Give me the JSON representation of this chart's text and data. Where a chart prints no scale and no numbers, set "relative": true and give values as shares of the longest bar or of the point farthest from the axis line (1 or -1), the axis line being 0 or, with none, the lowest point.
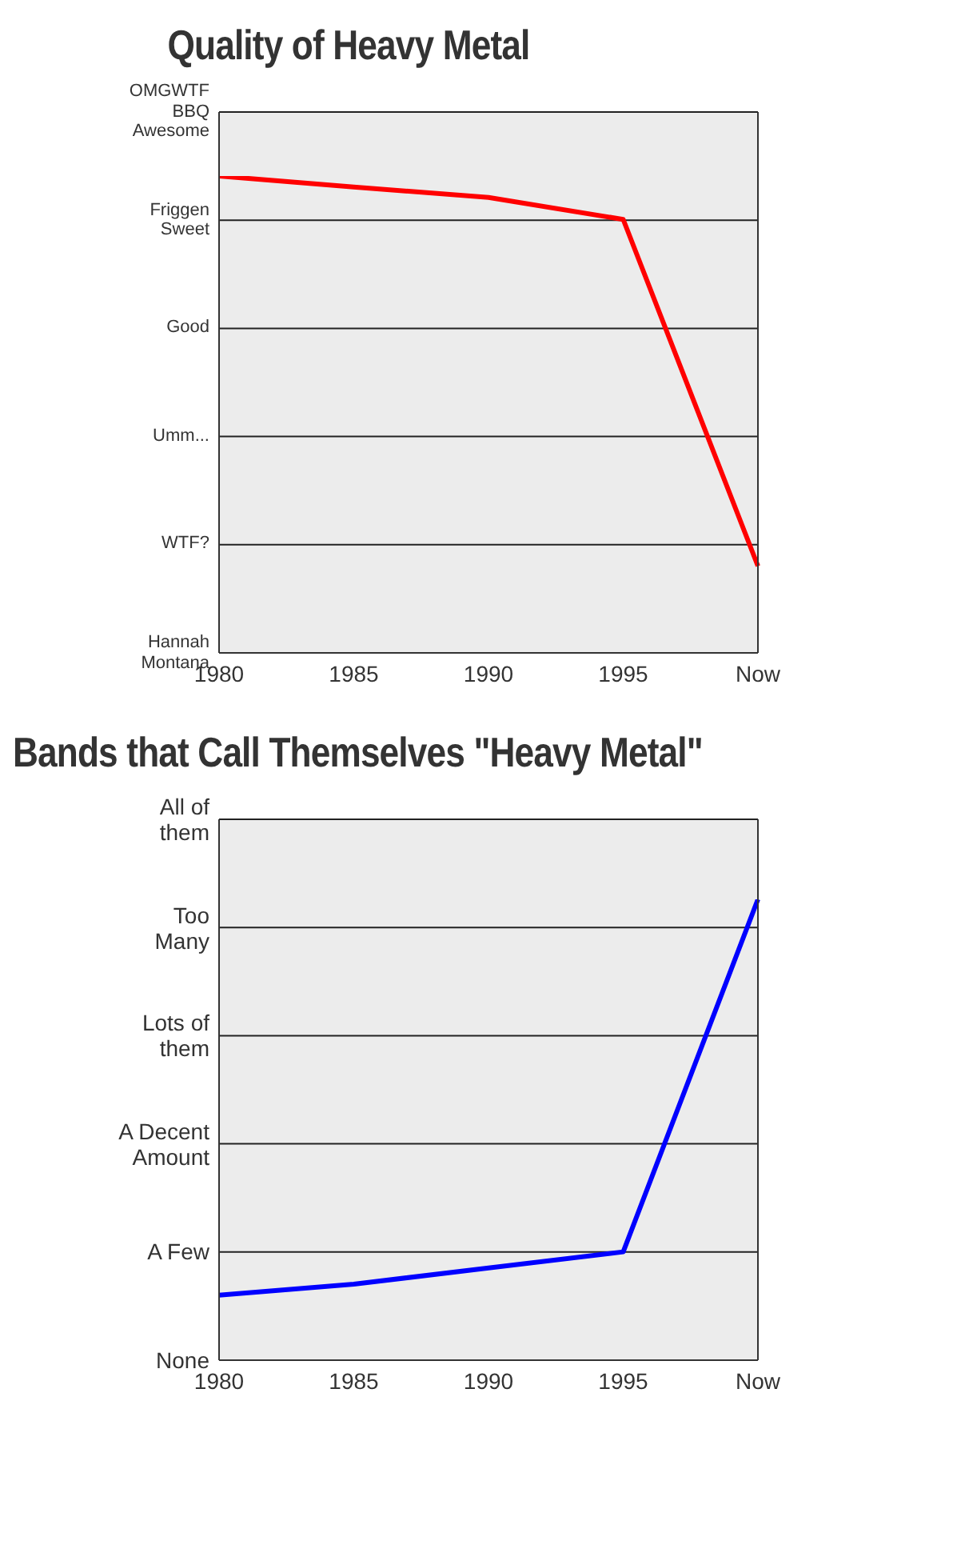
{
  "chart_data": [
    {
      "type": "line",
      "title": "Quality of Heavy Metal",
      "categories": [
        "1980",
        "1985",
        "1990",
        "1995",
        "Now"
      ],
      "series": [
        {
          "color": "#ff0000",
          "values": [
            1,
            0.977,
            0.955,
            0.909,
            0.182
          ]
        }
      ],
      "relative": true,
      "annotations": [
        "Hannah\nMontana",
        "WTF?",
        "Umm...",
        "Good",
        "Friggen\nSweet",
        "OMGWTF\nBBQ\nAwesome"
      ],
      "grid": "y",
      "marker": "none"
    },
    {
      "type": "line",
      "title": "Bands that Call Themselves \"Heavy Metal\"",
      "categories": [
        "1980",
        "1985",
        "1990",
        "1995",
        "Now"
      ],
      "series": [
        {
          "color": "#0000ff",
          "values": [
            0.141,
            0.165,
            0.2,
            0.235,
            1
          ]
        }
      ],
      "relative": true,
      "annotations": [
        "None",
        "A Few",
        "A Decent\nAmount",
        "Lots of\nthem",
        "Too\nMany",
        "All of\nthem"
      ],
      "grid": "y",
      "marker": "none"
    }
  ]
}
